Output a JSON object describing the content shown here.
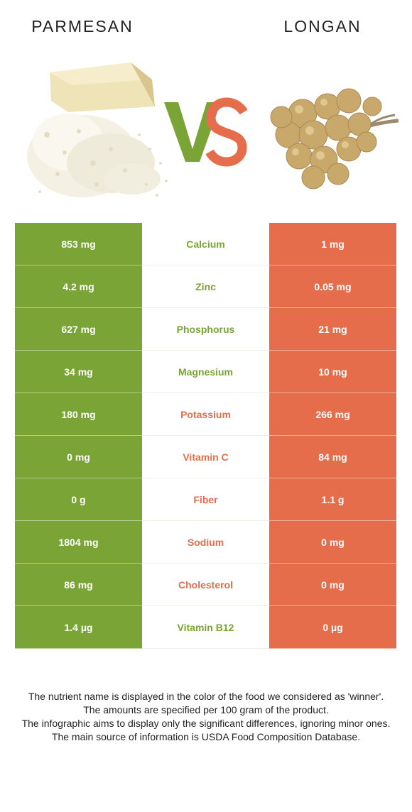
{
  "foods": {
    "left": {
      "name": "PARMESAN",
      "color": "#7aa536"
    },
    "right": {
      "name": "LONGAN",
      "color": "#e56d4b"
    }
  },
  "vs": {
    "v_color": "#7aa536",
    "s_color": "#e56d4b"
  },
  "nutrients": [
    {
      "name": "Calcium",
      "left": "853 mg",
      "right": "1 mg",
      "winner": "left"
    },
    {
      "name": "Zinc",
      "left": "4.2 mg",
      "right": "0.05 mg",
      "winner": "left"
    },
    {
      "name": "Phosphorus",
      "left": "627 mg",
      "right": "21 mg",
      "winner": "left"
    },
    {
      "name": "Magnesium",
      "left": "34 mg",
      "right": "10 mg",
      "winner": "left"
    },
    {
      "name": "Potassium",
      "left": "180 mg",
      "right": "266 mg",
      "winner": "right"
    },
    {
      "name": "Vitamin C",
      "left": "0 mg",
      "right": "84 mg",
      "winner": "right"
    },
    {
      "name": "Fiber",
      "left": "0 g",
      "right": "1.1 g",
      "winner": "right"
    },
    {
      "name": "Sodium",
      "left": "1804 mg",
      "right": "0 mg",
      "winner": "right"
    },
    {
      "name": "Cholesterol",
      "left": "86 mg",
      "right": "0 mg",
      "winner": "right"
    },
    {
      "name": "Vitamin B12",
      "left": "1.4 µg",
      "right": "0 µg",
      "winner": "left"
    }
  ],
  "footnotes": [
    "The nutrient name is displayed in the color of the food we considered as 'winner'.",
    "The amounts are specified per 100 gram of the product.",
    "The infographic aims to display only the significant differences, ignoring minor ones.",
    "The main source of information is USDA Food Composition Database."
  ]
}
